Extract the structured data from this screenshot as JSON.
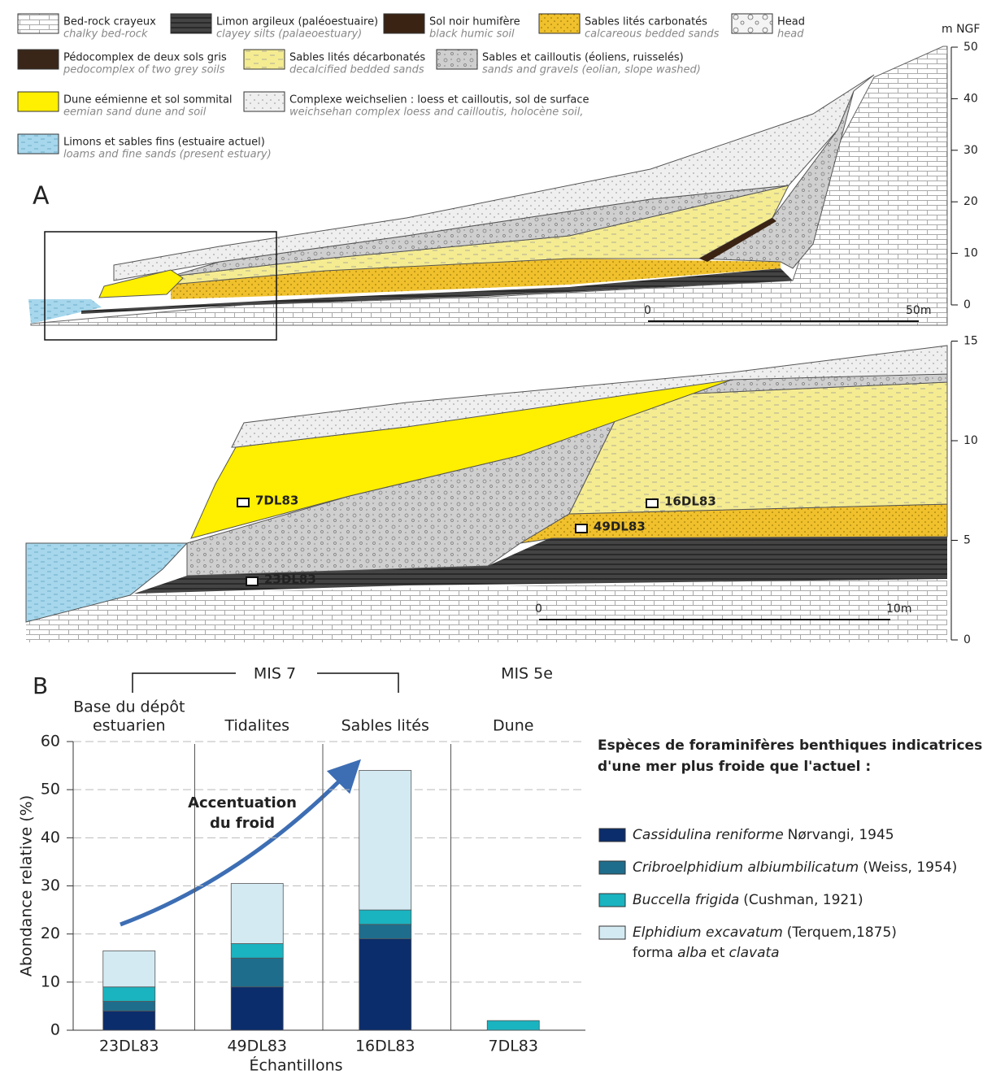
{
  "legend": [
    {
      "fr": "Bed-rock crayeux",
      "en": "chalky bed-rock"
    },
    {
      "fr": "Limon argileux (paléoestuaire)",
      "en": "clayey silts (palaeoestuary)"
    },
    {
      "fr": "Sol noir humifère",
      "en": "black humic soil"
    },
    {
      "fr": "Sables lités carbonatés",
      "en": "calcareous bedded sands"
    },
    {
      "fr": "Head",
      "en": "head"
    },
    {
      "fr": "Pédocomplex de deux sols gris",
      "en": "pedocomplex of two grey soils"
    },
    {
      "fr": "Sables lités décarbonatés",
      "en": "decalcified bedded sands"
    },
    {
      "fr": "Sables et cailloutis (éoliens, ruisselés)",
      "en": "sands and gravels (eolian, slope washed)"
    },
    {
      "fr": "Dune eémienne et sol sommital",
      "en": "eemian sand dune and soil"
    },
    {
      "fr": "Complexe weichselien : loess et cailloutis, sol de surface",
      "en": "weichsehan complex loess and cailloutis, holocène soil,"
    },
    {
      "fr": "Limons et sables fins (estuaire actuel)",
      "en": "loams and fine sands (present estuary)"
    }
  ],
  "section_a": {
    "label": "A",
    "unit": "m NGF",
    "ticks": [
      0,
      10,
      20,
      30,
      40,
      50
    ],
    "scale": [
      "0",
      "50m"
    ]
  },
  "section_detail": {
    "ticks": [
      0,
      5,
      10,
      15
    ],
    "scale": [
      "0",
      "10m"
    ],
    "samples": [
      "7DL83",
      "16DL83",
      "49DL83",
      "23DL83"
    ]
  },
  "chart_data": {
    "type": "bar",
    "stacked": true,
    "label": "B",
    "periods": [
      "MIS 7",
      "MIS 5e"
    ],
    "column_headers": [
      [
        "Base du dépôt",
        "estuarien"
      ],
      [
        "Tidalites"
      ],
      [
        "Sables lités"
      ],
      [
        "Dune"
      ]
    ],
    "categories": [
      "23DL83",
      "49DL83",
      "16DL83",
      "7DL83"
    ],
    "xlabel": "Échantillons",
    "ylabel": "Abondance relative (%)",
    "ylim": [
      0,
      60
    ],
    "yticks": [
      0,
      10,
      20,
      30,
      40,
      50,
      60
    ],
    "grid": true,
    "annotation": [
      "Accentuation",
      "du froid"
    ],
    "legend_title": [
      "Espèces de foraminifères benthiques indicatrices",
      "d'une mer plus froide que l'actuel :"
    ],
    "series": [
      {
        "name": "Cassidulina reniforme",
        "authority": "Nørvangi, 1945",
        "color": "#0b2d6b",
        "values": [
          4,
          9,
          19,
          0
        ]
      },
      {
        "name": "Cribroelphidium albiumbilicatum",
        "authority": "(Weiss, 1954)",
        "color": "#1f6d8c",
        "values": [
          2,
          6,
          3,
          0
        ]
      },
      {
        "name": "Buccella frigida",
        "authority": "(Cushman, 1921)",
        "color": "#1ab3c0",
        "values": [
          3,
          3,
          3,
          2
        ]
      },
      {
        "name": "Elphidium excavatum",
        "authority": "(Terquem,1875)",
        "note": [
          "forma",
          "alba",
          "et",
          "clavata"
        ],
        "color": "#d4eaf3",
        "values": [
          7.5,
          12.5,
          29,
          0
        ]
      }
    ]
  }
}
